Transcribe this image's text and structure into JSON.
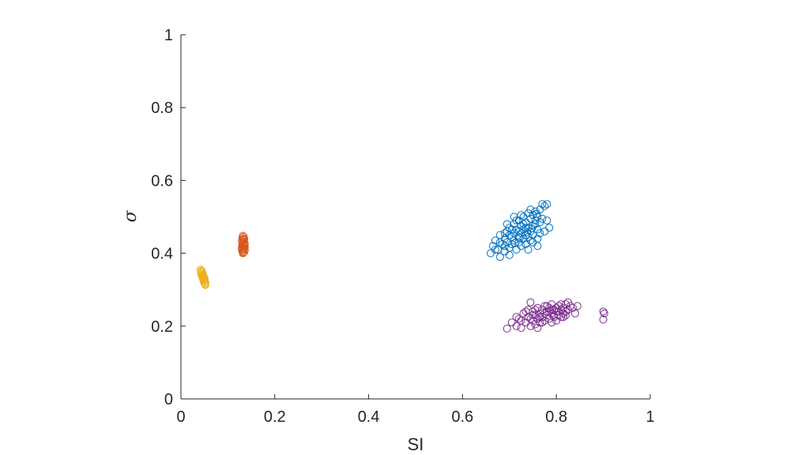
{
  "chart_data": {
    "type": "scatter",
    "title": "",
    "xlabel": "SI",
    "ylabel": "σ",
    "xlim": [
      0,
      1
    ],
    "ylim": [
      0,
      1
    ],
    "xticks": [
      0,
      0.2,
      0.4,
      0.6,
      0.8,
      1
    ],
    "yticks": [
      0,
      0.2,
      0.4,
      0.6,
      0.8,
      1
    ],
    "xtick_labels": [
      "0",
      "0.2",
      "0.4",
      "0.6",
      "0.8",
      "1"
    ],
    "ytick_labels": [
      "0",
      "0.2",
      "0.4",
      "0.6",
      "0.8",
      "1"
    ],
    "grid": false,
    "legend": "none",
    "marker": "open-circle",
    "series": [
      {
        "color": "#EDB120",
        "points": [
          [
            0.042,
            0.355
          ],
          [
            0.044,
            0.352
          ],
          [
            0.045,
            0.348
          ],
          [
            0.043,
            0.345
          ],
          [
            0.046,
            0.344
          ],
          [
            0.047,
            0.341
          ],
          [
            0.045,
            0.338
          ],
          [
            0.048,
            0.337
          ],
          [
            0.046,
            0.334
          ],
          [
            0.049,
            0.333
          ],
          [
            0.047,
            0.33
          ],
          [
            0.05,
            0.329
          ],
          [
            0.048,
            0.326
          ],
          [
            0.051,
            0.325
          ],
          [
            0.049,
            0.322
          ],
          [
            0.052,
            0.32
          ],
          [
            0.05,
            0.318
          ],
          [
            0.051,
            0.315
          ],
          [
            0.052,
            0.313
          ],
          [
            0.044,
            0.34
          ],
          [
            0.046,
            0.336
          ],
          [
            0.05,
            0.332
          ],
          [
            0.048,
            0.328
          ],
          [
            0.045,
            0.35
          ]
        ]
      },
      {
        "color": "#D95319",
        "points": [
          [
            0.132,
            0.448
          ],
          [
            0.134,
            0.445
          ],
          [
            0.131,
            0.442
          ],
          [
            0.135,
            0.44
          ],
          [
            0.133,
            0.437
          ],
          [
            0.13,
            0.434
          ],
          [
            0.134,
            0.432
          ],
          [
            0.132,
            0.429
          ],
          [
            0.136,
            0.427
          ],
          [
            0.131,
            0.424
          ],
          [
            0.135,
            0.421
          ],
          [
            0.133,
            0.419
          ],
          [
            0.13,
            0.416
          ],
          [
            0.134,
            0.414
          ],
          [
            0.132,
            0.411
          ],
          [
            0.136,
            0.409
          ],
          [
            0.131,
            0.406
          ],
          [
            0.135,
            0.404
          ],
          [
            0.133,
            0.402
          ],
          [
            0.132,
            0.4
          ],
          [
            0.134,
            0.436
          ],
          [
            0.131,
            0.428
          ],
          [
            0.136,
            0.418
          ],
          [
            0.13,
            0.41
          ]
        ]
      },
      {
        "color": "#0072BD",
        "points": [
          [
            0.66,
            0.4
          ],
          [
            0.665,
            0.42
          ],
          [
            0.67,
            0.435
          ],
          [
            0.675,
            0.41
          ],
          [
            0.68,
            0.39
          ],
          [
            0.68,
            0.45
          ],
          [
            0.685,
            0.425
          ],
          [
            0.69,
            0.44
          ],
          [
            0.69,
            0.405
          ],
          [
            0.695,
            0.46
          ],
          [
            0.695,
            0.43
          ],
          [
            0.7,
            0.415
          ],
          [
            0.7,
            0.47
          ],
          [
            0.705,
            0.445
          ],
          [
            0.705,
            0.425
          ],
          [
            0.71,
            0.48
          ],
          [
            0.71,
            0.455
          ],
          [
            0.71,
            0.435
          ],
          [
            0.715,
            0.41
          ],
          [
            0.715,
            0.465
          ],
          [
            0.72,
            0.49
          ],
          [
            0.72,
            0.445
          ],
          [
            0.72,
            0.43
          ],
          [
            0.725,
            0.475
          ],
          [
            0.725,
            0.455
          ],
          [
            0.725,
            0.42
          ],
          [
            0.73,
            0.5
          ],
          [
            0.73,
            0.465
          ],
          [
            0.73,
            0.44
          ],
          [
            0.735,
            0.485
          ],
          [
            0.735,
            0.45
          ],
          [
            0.735,
            0.425
          ],
          [
            0.74,
            0.51
          ],
          [
            0.74,
            0.47
          ],
          [
            0.74,
            0.445
          ],
          [
            0.745,
            0.495
          ],
          [
            0.745,
            0.46
          ],
          [
            0.745,
            0.435
          ],
          [
            0.75,
            0.505
          ],
          [
            0.75,
            0.475
          ],
          [
            0.75,
            0.45
          ],
          [
            0.755,
            0.515
          ],
          [
            0.755,
            0.48
          ],
          [
            0.76,
            0.5
          ],
          [
            0.76,
            0.465
          ],
          [
            0.765,
            0.52
          ],
          [
            0.765,
            0.485
          ],
          [
            0.77,
            0.535
          ],
          [
            0.77,
            0.495
          ],
          [
            0.775,
            0.53
          ],
          [
            0.78,
            0.535
          ],
          [
            0.78,
            0.49
          ],
          [
            0.775,
            0.46
          ],
          [
            0.76,
            0.44
          ],
          [
            0.74,
            0.41
          ],
          [
            0.72,
            0.46
          ],
          [
            0.7,
            0.45
          ],
          [
            0.69,
            0.42
          ],
          [
            0.71,
            0.5
          ],
          [
            0.73,
            0.48
          ],
          [
            0.75,
            0.43
          ],
          [
            0.765,
            0.455
          ],
          [
            0.785,
            0.47
          ],
          [
            0.7,
            0.395
          ],
          [
            0.68,
            0.43
          ],
          [
            0.67,
            0.41
          ],
          [
            0.695,
            0.48
          ],
          [
            0.715,
            0.49
          ],
          [
            0.735,
            0.47
          ],
          [
            0.755,
            0.49
          ],
          [
            0.745,
            0.52
          ],
          [
            0.725,
            0.505
          ],
          [
            0.705,
            0.465
          ],
          [
            0.69,
            0.455
          ],
          [
            0.76,
            0.42
          ],
          [
            0.738,
            0.458
          ],
          [
            0.722,
            0.442
          ],
          [
            0.748,
            0.468
          ],
          [
            0.712,
            0.428
          ],
          [
            0.758,
            0.508
          ]
        ]
      },
      {
        "color": "#7E2F8E",
        "points": [
          [
            0.695,
            0.193
          ],
          [
            0.705,
            0.21
          ],
          [
            0.715,
            0.2
          ],
          [
            0.72,
            0.22
          ],
          [
            0.725,
            0.195
          ],
          [
            0.73,
            0.235
          ],
          [
            0.735,
            0.21
          ],
          [
            0.74,
            0.225
          ],
          [
            0.745,
            0.2
          ],
          [
            0.745,
            0.265
          ],
          [
            0.75,
            0.24
          ],
          [
            0.75,
            0.215
          ],
          [
            0.755,
            0.23
          ],
          [
            0.755,
            0.205
          ],
          [
            0.76,
            0.25
          ],
          [
            0.76,
            0.22
          ],
          [
            0.765,
            0.235
          ],
          [
            0.765,
            0.21
          ],
          [
            0.77,
            0.245
          ],
          [
            0.77,
            0.225
          ],
          [
            0.775,
            0.255
          ],
          [
            0.775,
            0.215
          ],
          [
            0.78,
            0.24
          ],
          [
            0.78,
            0.23
          ],
          [
            0.785,
            0.25
          ],
          [
            0.785,
            0.22
          ],
          [
            0.79,
            0.235
          ],
          [
            0.79,
            0.26
          ],
          [
            0.795,
            0.225
          ],
          [
            0.795,
            0.245
          ],
          [
            0.8,
            0.24
          ],
          [
            0.8,
            0.215
          ],
          [
            0.805,
            0.255
          ],
          [
            0.805,
            0.23
          ],
          [
            0.81,
            0.245
          ],
          [
            0.81,
            0.225
          ],
          [
            0.815,
            0.25
          ],
          [
            0.815,
            0.235
          ],
          [
            0.82,
            0.26
          ],
          [
            0.82,
            0.24
          ],
          [
            0.825,
            0.265
          ],
          [
            0.825,
            0.245
          ],
          [
            0.83,
            0.255
          ],
          [
            0.835,
            0.25
          ],
          [
            0.845,
            0.255
          ],
          [
            0.84,
            0.235
          ],
          [
            0.9,
            0.24
          ],
          [
            0.902,
            0.235
          ],
          [
            0.9,
            0.218
          ],
          [
            0.76,
            0.195
          ],
          [
            0.74,
            0.245
          ],
          [
            0.79,
            0.21
          ],
          [
            0.81,
            0.26
          ],
          [
            0.775,
            0.235
          ],
          [
            0.765,
            0.225
          ],
          [
            0.785,
            0.24
          ],
          [
            0.795,
            0.23
          ],
          [
            0.755,
            0.245
          ],
          [
            0.745,
            0.22
          ],
          [
            0.735,
            0.24
          ],
          [
            0.805,
            0.24
          ],
          [
            0.815,
            0.225
          ],
          [
            0.78,
            0.255
          ],
          [
            0.77,
            0.21
          ],
          [
            0.75,
            0.23
          ],
          [
            0.725,
            0.215
          ],
          [
            0.715,
            0.225
          ],
          [
            0.8,
            0.25
          ],
          [
            0.79,
            0.245
          ],
          [
            0.82,
            0.23
          ]
        ]
      }
    ]
  }
}
